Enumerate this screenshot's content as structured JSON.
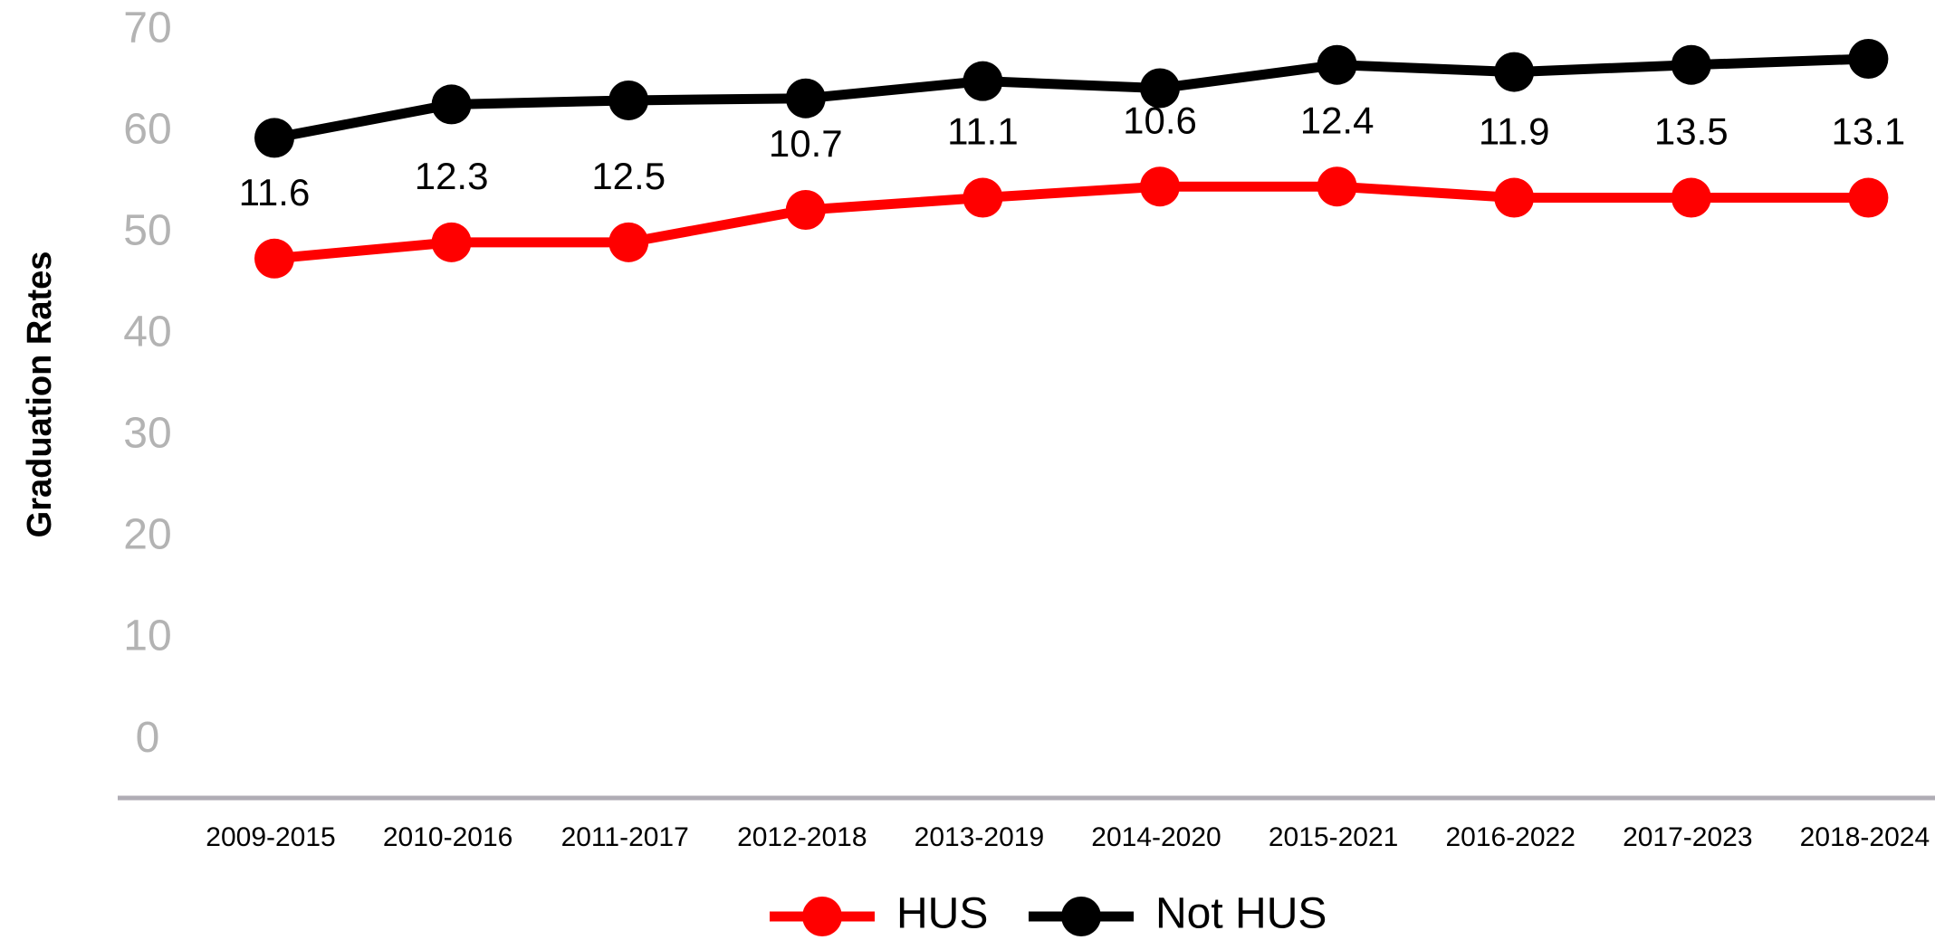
{
  "chart_data": {
    "type": "line",
    "ylabel": "Graduation Rates",
    "categories": [
      "2009-2015",
      "2010-2016",
      "2011-2017",
      "2012-2018",
      "2013-2019",
      "2014-2020",
      "2015-2021",
      "2016-2022",
      "2017-2023",
      "2018-2024"
    ],
    "series": [
      {
        "name": "HUS",
        "color": "#ff0000",
        "values": [
          47.5,
          49.1,
          49.1,
          52.3,
          53.5,
          54.6,
          54.6,
          53.5,
          53.5,
          53.5
        ]
      },
      {
        "name": "Not HUS",
        "color": "#000000",
        "values": [
          59.4,
          62.7,
          63.1,
          63.3,
          65.0,
          64.3,
          66.6,
          65.9,
          66.6,
          67.2
        ]
      }
    ],
    "annotations": [
      11.6,
      12.3,
      12.5,
      10.7,
      11.1,
      10.6,
      12.4,
      11.9,
      13.5,
      13.1
    ],
    "ylim": [
      -5.7,
      73
    ],
    "yticks": [
      0,
      10,
      20,
      30,
      40,
      50,
      60,
      70
    ],
    "grid": false,
    "legend": "bottom"
  }
}
